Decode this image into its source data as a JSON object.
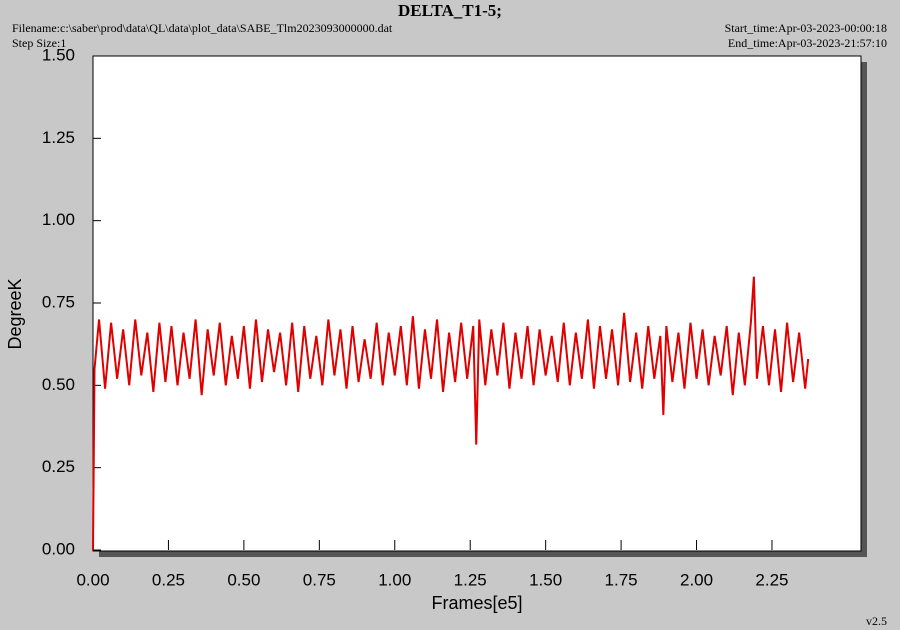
{
  "header": {
    "title": "DELTA_T1-5;",
    "filename": "Filename:c:\\saber\\prod\\data\\QL\\data\\plot_data\\SABE_Tlm2023093000000.dat",
    "step_size": "Step Size:1",
    "start_time": "Start_time:Apr-03-2023-00:00:18",
    "end_time": "End_time:Apr-03-2023-21:57:10"
  },
  "version": "v2.5",
  "chart_data": {
    "type": "line",
    "xlabel": "Frames[e5]",
    "ylabel": "DegreeK",
    "xlim": [
      0,
      2.545
    ],
    "ylim": [
      0,
      1.5
    ],
    "xticks": [
      {
        "value": 0,
        "label": "0.00"
      },
      {
        "value": 0.25,
        "label": "0.25"
      },
      {
        "value": 0.5,
        "label": "0.50"
      },
      {
        "value": 0.75,
        "label": "0.75"
      },
      {
        "value": 1,
        "label": "1.00"
      },
      {
        "value": 1.25,
        "label": "1.25"
      },
      {
        "value": 1.5,
        "label": "1.50"
      },
      {
        "value": 1.75,
        "label": "1.75"
      },
      {
        "value": 2,
        "label": "2.00"
      },
      {
        "value": 2.25,
        "label": "2.25"
      }
    ],
    "yticks": [
      {
        "value": 0,
        "label": "0.00"
      },
      {
        "value": 0.25,
        "label": "0.25"
      },
      {
        "value": 0.5,
        "label": "0.50"
      },
      {
        "value": 0.75,
        "label": "0.75"
      },
      {
        "value": 1,
        "label": "1.00"
      },
      {
        "value": 1.25,
        "label": "1.25"
      },
      {
        "value": 1.5,
        "label": "1.50"
      }
    ],
    "grid": false,
    "x": [
      0,
      0.005,
      0.02,
      0.04,
      0.06,
      0.08,
      0.1,
      0.12,
      0.14,
      0.16,
      0.18,
      0.2,
      0.22,
      0.24,
      0.26,
      0.28,
      0.3,
      0.32,
      0.34,
      0.36,
      0.38,
      0.4,
      0.42,
      0.44,
      0.46,
      0.48,
      0.5,
      0.52,
      0.54,
      0.56,
      0.58,
      0.6,
      0.62,
      0.64,
      0.66,
      0.68,
      0.7,
      0.72,
      0.74,
      0.76,
      0.78,
      0.8,
      0.82,
      0.84,
      0.86,
      0.88,
      0.9,
      0.92,
      0.94,
      0.96,
      0.98,
      1.0,
      1.02,
      1.04,
      1.06,
      1.08,
      1.1,
      1.12,
      1.14,
      1.16,
      1.18,
      1.2,
      1.22,
      1.24,
      1.26,
      1.27,
      1.28,
      1.3,
      1.32,
      1.34,
      1.36,
      1.38,
      1.4,
      1.42,
      1.44,
      1.46,
      1.48,
      1.5,
      1.52,
      1.54,
      1.56,
      1.58,
      1.6,
      1.62,
      1.64,
      1.66,
      1.68,
      1.7,
      1.72,
      1.74,
      1.76,
      1.78,
      1.8,
      1.82,
      1.84,
      1.86,
      1.88,
      1.89,
      1.9,
      1.92,
      1.94,
      1.96,
      1.98,
      2.0,
      2.02,
      2.04,
      2.06,
      2.08,
      2.1,
      2.12,
      2.14,
      2.16,
      2.18,
      2.19,
      2.2,
      2.22,
      2.24,
      2.26,
      2.28,
      2.3,
      2.32,
      2.34,
      2.36,
      2.37
    ],
    "series": [
      {
        "name": "DELTA_T1-5",
        "color": "#e00000",
        "values": [
          0,
          0.55,
          0.7,
          0.49,
          0.69,
          0.52,
          0.67,
          0.5,
          0.7,
          0.53,
          0.66,
          0.48,
          0.69,
          0.51,
          0.68,
          0.5,
          0.66,
          0.52,
          0.7,
          0.47,
          0.67,
          0.53,
          0.69,
          0.5,
          0.65,
          0.52,
          0.68,
          0.49,
          0.7,
          0.51,
          0.67,
          0.54,
          0.66,
          0.5,
          0.69,
          0.48,
          0.68,
          0.52,
          0.65,
          0.5,
          0.7,
          0.53,
          0.67,
          0.49,
          0.68,
          0.51,
          0.64,
          0.52,
          0.69,
          0.5,
          0.66,
          0.53,
          0.68,
          0.5,
          0.71,
          0.49,
          0.67,
          0.52,
          0.7,
          0.48,
          0.66,
          0.51,
          0.69,
          0.52,
          0.68,
          0.32,
          0.7,
          0.5,
          0.67,
          0.53,
          0.69,
          0.49,
          0.66,
          0.52,
          0.68,
          0.5,
          0.67,
          0.53,
          0.65,
          0.51,
          0.69,
          0.5,
          0.66,
          0.52,
          0.7,
          0.49,
          0.68,
          0.52,
          0.67,
          0.5,
          0.72,
          0.51,
          0.66,
          0.49,
          0.68,
          0.52,
          0.65,
          0.41,
          0.68,
          0.51,
          0.66,
          0.49,
          0.69,
          0.52,
          0.67,
          0.5,
          0.65,
          0.53,
          0.68,
          0.47,
          0.66,
          0.5,
          0.69,
          0.83,
          0.52,
          0.68,
          0.5,
          0.67,
          0.48,
          0.69,
          0.51,
          0.66,
          0.49,
          0.58
        ]
      }
    ]
  }
}
